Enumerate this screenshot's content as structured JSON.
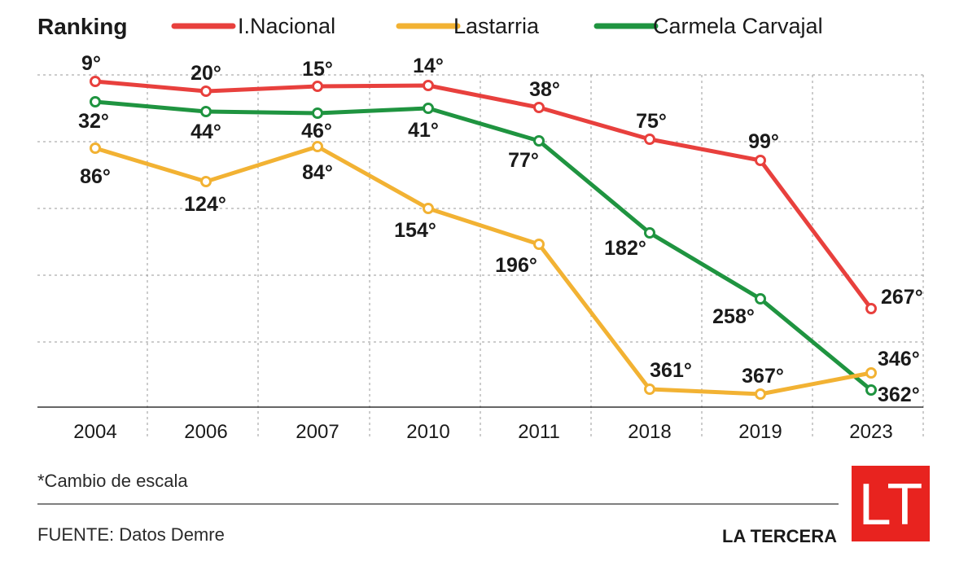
{
  "chart_data": {
    "type": "line",
    "title": "Ranking",
    "categories": [
      "2004",
      "2006",
      "2007",
      "2010",
      "2011",
      "2018",
      "2019",
      "2023"
    ],
    "y_axis": "Ranking (inverted; lower is better)",
    "y_scale_note": "*Cambio de escala",
    "grid": true,
    "legend_position": "top",
    "series": [
      {
        "name": "I.Nacional",
        "color": "#e8403d",
        "values": [
          9,
          20,
          15,
          14,
          38,
          75,
          99,
          267
        ],
        "labels": [
          "9°",
          "20°",
          "15°",
          "14°",
          "38°",
          "75°",
          "99°",
          "267°"
        ]
      },
      {
        "name": "Lastarria",
        "color": "#f2b233",
        "values": [
          86,
          124,
          84,
          154,
          196,
          361,
          367,
          346
        ],
        "labels": [
          "86°",
          "124°",
          "84°",
          "154°",
          "196°",
          "361°",
          "367°",
          "346°"
        ]
      },
      {
        "name": "Carmela Carvajal",
        "color": "#1f9440",
        "values": [
          32,
          44,
          46,
          41,
          77,
          182,
          258,
          362
        ],
        "labels": [
          "32°",
          "44°",
          "46°",
          "41°",
          "77°",
          "182°",
          "258°",
          "362°"
        ]
      }
    ]
  },
  "footer": {
    "note": "*Cambio de escala",
    "source": "FUENTE: Datos Demre",
    "brand": "LA TERCERA",
    "logo_text": "LT",
    "logo_color": "#e8231f"
  }
}
